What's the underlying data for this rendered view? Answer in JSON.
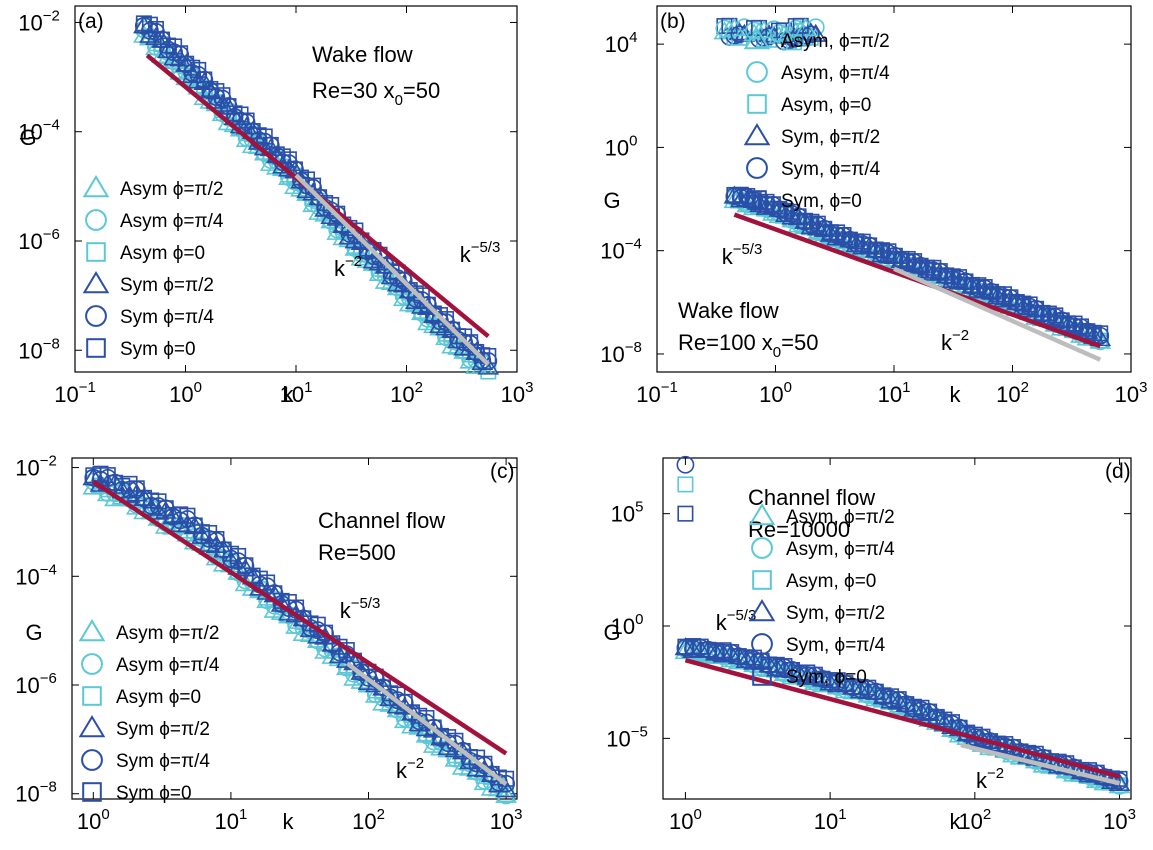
{
  "colors": {
    "asym": "#5bc8d6",
    "sym": "#2b4fa8",
    "kminus53": "#a3123c",
    "kminus2": "#bdbdbd"
  },
  "chart_data": [
    {
      "type": "scatter",
      "panel": "(a)",
      "title_lines": [
        "Wake flow",
        "Re=30 x",
        "0",
        "=50"
      ],
      "xlabel": "k",
      "ylabel": "G",
      "xscale": "log",
      "yscale": "log",
      "xlim": [
        0.1,
        1000
      ],
      "ylim": [
        4e-09,
        0.02
      ],
      "xticks": [
        {
          "base": "10",
          "exp": "−1"
        },
        {
          "base": "10",
          "exp": "0"
        },
        {
          "base": "10",
          "exp": "1"
        },
        {
          "base": "10",
          "exp": "2"
        },
        {
          "base": "10",
          "exp": "3"
        }
      ],
      "yticks": [
        {
          "base": "10",
          "exp": "−2"
        },
        {
          "base": "10",
          "exp": "−4"
        },
        {
          "base": "10",
          "exp": "−6"
        },
        {
          "base": "10",
          "exp": "−8"
        }
      ],
      "ytick_values": [
        0.01,
        0.0001,
        1e-06,
        1e-08
      ],
      "legend": [
        "Asym ϕ=π/2",
        "Asym ϕ=π/4",
        "Asym ϕ=0",
        "Sym ϕ=π/2",
        "Sym ϕ=π/4",
        "Sym ϕ=0"
      ],
      "legend_position": "lower-left",
      "series_points": [
        [
          0.42,
          0.008
        ],
        [
          1,
          0.0015
        ],
        [
          3,
          0.00015
        ],
        [
          10,
          1.5e-05
        ],
        [
          30,
          1.3e-06
        ],
        [
          100,
          1.2e-07
        ],
        [
          300,
          1.4e-08
        ],
        [
          550,
          5e-09
        ]
      ],
      "lines": [
        {
          "label": "k",
          "exp": "−5/3",
          "x": [
            0.45,
            550
          ],
          "y": [
            0.0025,
            1.8e-08
          ]
        },
        {
          "label": "k",
          "exp": "−2",
          "x": [
            10,
            550
          ],
          "y": [
            1.6e-05,
            5.5e-09
          ]
        }
      ]
    },
    {
      "type": "scatter",
      "panel": "(b)",
      "title_lines": [
        "Wake flow",
        "Re=100 x",
        "0",
        "=50"
      ],
      "xlabel": "k",
      "ylabel": "G",
      "xscale": "log",
      "yscale": "log",
      "xlim": [
        0.1,
        1000
      ],
      "ylim": [
        2e-09,
        300000
      ],
      "xticks": [
        {
          "base": "10",
          "exp": "−1"
        },
        {
          "base": "10",
          "exp": "0"
        },
        {
          "base": "10",
          "exp": "1"
        },
        {
          "base": "10",
          "exp": "2"
        },
        {
          "base": "10",
          "exp": "3"
        }
      ],
      "yticks": [
        {
          "base": "10",
          "exp": "4"
        },
        {
          "base": "10",
          "exp": "0"
        },
        {
          "base": "10",
          "exp": "−4"
        },
        {
          "base": "10",
          "exp": "−8"
        }
      ],
      "ytick_values": [
        10000.0,
        1,
        0.0001,
        1e-08
      ],
      "legend": [
        "Asym, ϕ=π/2",
        "Asym, ϕ=π/4",
        "Asym, ϕ=0",
        "Sym, ϕ=π/2",
        "Sym, ϕ=π/4",
        "Sym, ϕ=0"
      ],
      "legend_position": "upper-right",
      "cluster_points": [
        [
          0.45,
          30000
        ],
        [
          0.8,
          25000
        ],
        [
          1.3,
          20000
        ],
        [
          1.8,
          30000
        ]
      ],
      "series_points": [
        [
          0.45,
          0.012
        ],
        [
          1,
          0.004
        ],
        [
          3,
          0.0004
        ],
        [
          10,
          5e-05
        ],
        [
          30,
          8e-06
        ],
        [
          100,
          1e-06
        ],
        [
          300,
          1.2e-07
        ],
        [
          550,
          4e-08
        ]
      ],
      "lines": [
        {
          "label": "k",
          "exp": "−5/3",
          "x": [
            0.45,
            550
          ],
          "y": [
            0.0025,
            2e-08
          ]
        },
        {
          "label": "k",
          "exp": "−2",
          "x": [
            10,
            550
          ],
          "y": [
            2e-05,
            6e-09
          ]
        }
      ]
    },
    {
      "type": "scatter",
      "panel": "(c)",
      "title_lines": [
        "Channel flow",
        "Re=500"
      ],
      "xlabel": "k",
      "ylabel": "G",
      "xscale": "log",
      "yscale": "log",
      "xlim": [
        0.7,
        1200
      ],
      "ylim": [
        8e-09,
        0.015
      ],
      "xticks": [
        {
          "base": "10",
          "exp": "0"
        },
        {
          "base": "10",
          "exp": "1"
        },
        {
          "base": "10",
          "exp": "2"
        },
        {
          "base": "10",
          "exp": "3"
        }
      ],
      "yticks": [
        {
          "base": "10",
          "exp": "−2"
        },
        {
          "base": "10",
          "exp": "−4"
        },
        {
          "base": "10",
          "exp": "−6"
        },
        {
          "base": "10",
          "exp": "−8"
        }
      ],
      "ytick_values": [
        0.01,
        0.0001,
        1e-06,
        1e-08
      ],
      "legend": [
        "Asym ϕ=π/2",
        "Asym ϕ=π/4",
        "Asym ϕ=0",
        "Sym ϕ=π/2",
        "Sym ϕ=π/4",
        "Sym ϕ=0"
      ],
      "legend_position": "lower-left",
      "series_points": [
        [
          1,
          0.006
        ],
        [
          1.5,
          0.004
        ],
        [
          2,
          0.003
        ],
        [
          3,
          0.0015
        ],
        [
          5,
          0.0008
        ],
        [
          10,
          0.0002
        ],
        [
          20,
          4e-05
        ],
        [
          50,
          6e-06
        ],
        [
          100,
          1.2e-06
        ],
        [
          300,
          1.2e-07
        ],
        [
          1000,
          1.2e-08
        ]
      ],
      "lines": [
        {
          "label": "k",
          "exp": "−5/3",
          "x": [
            1,
            1000
          ],
          "y": [
            0.0055,
            5.5e-08
          ]
        },
        {
          "label": "k",
          "exp": "−2",
          "x": [
            70,
            1000
          ],
          "y": [
            2.5e-06,
            1.5e-08
          ]
        }
      ]
    },
    {
      "type": "scatter",
      "panel": "(d)",
      "title_lines": [
        "Channel flow",
        "Re=10000"
      ],
      "xlabel": "k",
      "ylabel": "G",
      "xscale": "log",
      "yscale": "log",
      "xlim": [
        0.7,
        1200
      ],
      "ylim": [
        2e-08,
        30000000.0
      ],
      "xticks": [
        {
          "base": "10",
          "exp": "0"
        },
        {
          "base": "10",
          "exp": "1"
        },
        {
          "base": "10",
          "exp": "2"
        },
        {
          "base": "10",
          "exp": "3"
        }
      ],
      "yticks": [
        {
          "base": "10",
          "exp": "5"
        },
        {
          "base": "10",
          "exp": "0"
        },
        {
          "base": "10",
          "exp": "−5"
        }
      ],
      "ytick_values": [
        100000.0,
        1,
        1e-05
      ],
      "legend": [
        "Asym, ϕ=π/2",
        "Asym, ϕ=π/4",
        "Asym, ϕ=0",
        "Sym, ϕ=π/2",
        "Sym, ϕ=π/4",
        "Sym, ϕ=0"
      ],
      "legend_position": "right",
      "cluster_points": [
        [
          1,
          15000000
        ],
        [
          1,
          2000000
        ],
        [
          1,
          100000
        ]
      ],
      "series_points": [
        [
          1,
          0.1
        ],
        [
          2,
          0.05
        ],
        [
          5,
          0.01
        ],
        [
          10,
          0.003
        ],
        [
          20,
          0.001
        ],
        [
          50,
          0.0001
        ],
        [
          100,
          1e-05
        ],
        [
          300,
          1e-06
        ],
        [
          1000,
          1e-07
        ]
      ],
      "lines": [
        {
          "label": "k",
          "exp": "−5/3",
          "x": [
            1,
            1000
          ],
          "y": [
            0.03,
            2e-07
          ]
        },
        {
          "label": "k",
          "exp": "−2",
          "x": [
            80,
            1000
          ],
          "y": [
            5e-06,
            1e-07
          ]
        }
      ]
    }
  ]
}
